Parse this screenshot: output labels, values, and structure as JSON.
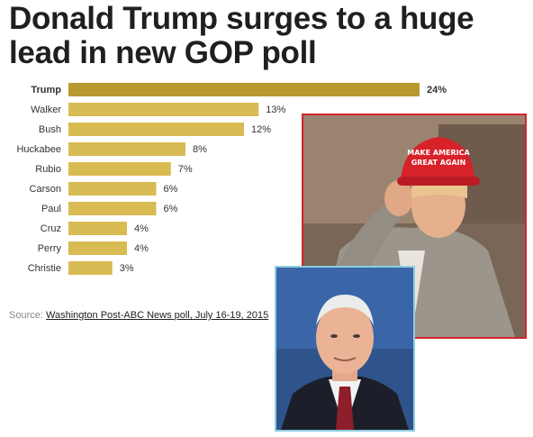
{
  "headline": "Donald Trump surges to a huge lead in new GOP poll",
  "source": {
    "label": "Source:",
    "link_text": "Washington Post-ABC News poll, July 16-19, 2015"
  },
  "colors": {
    "leader_bar": "#b89a2e",
    "bar": "#d9bb53",
    "trump_frame": "#d6232a",
    "mccain_frame": "#8fcde0"
  },
  "photos": {
    "trump_cap_text_1": "MAKE AMERICA",
    "trump_cap_text_2": "GREAT AGAIN"
  },
  "chart_data": {
    "type": "bar",
    "orientation": "horizontal",
    "categories": [
      "Trump",
      "Walker",
      "Bush",
      "Huckabee",
      "Rubio",
      "Carson",
      "Paul",
      "Cruz",
      "Perry",
      "Christie"
    ],
    "values": [
      24,
      13,
      12,
      8,
      7,
      6,
      6,
      4,
      4,
      3
    ],
    "value_labels": [
      "24%",
      "13%",
      "12%",
      "8%",
      "7%",
      "6%",
      "6%",
      "4%",
      "4%",
      "3%"
    ],
    "highlight": "Trump",
    "xlim": [
      0,
      24
    ],
    "grid": false,
    "legend": "none"
  }
}
